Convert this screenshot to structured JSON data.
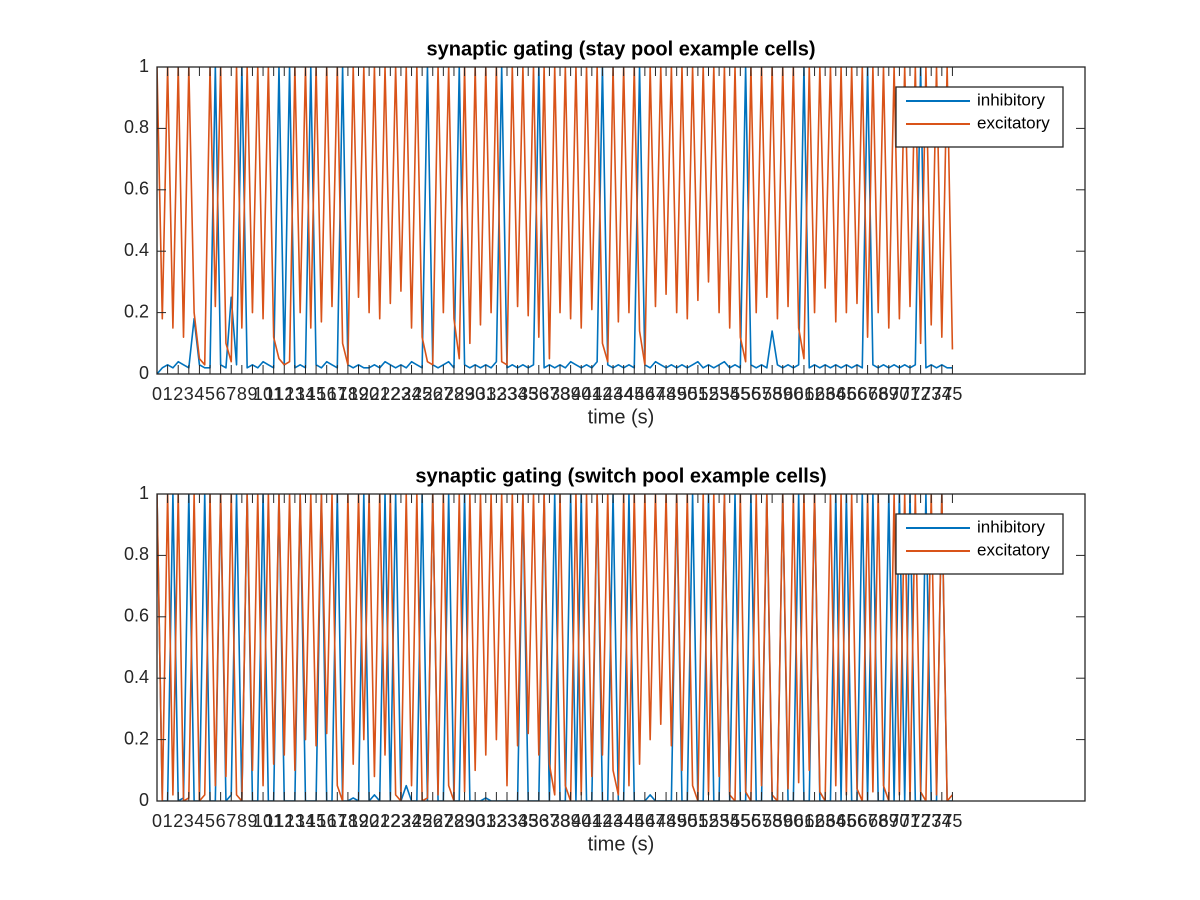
{
  "chart_data": [
    {
      "type": "line",
      "title": "synaptic gating (stay pool example cells)",
      "xlabel": "time (s)",
      "legend": "upper right",
      "grid": false,
      "xlim": [
        0,
        87.5
      ],
      "ylim": [
        0,
        1
      ],
      "xticks": [
        0,
        1,
        2,
        3,
        4,
        5,
        6,
        7,
        8,
        9,
        10,
        11,
        12,
        13,
        14,
        15,
        16,
        17,
        18,
        19,
        20,
        21,
        22,
        23,
        24,
        25,
        26,
        27,
        28,
        29,
        30,
        31,
        32,
        33,
        34,
        35,
        36,
        37,
        38,
        39,
        40,
        41,
        42,
        43,
        44,
        45,
        46,
        47,
        48,
        49,
        50,
        51,
        52,
        53,
        54,
        55,
        56,
        57,
        58,
        59,
        60,
        61,
        62,
        63,
        64,
        65,
        66,
        67,
        68,
        69,
        70,
        71,
        72,
        73,
        74,
        75
      ],
      "yticks": [
        0,
        0.2,
        0.4,
        0.6,
        0.8,
        1
      ],
      "x": [
        0,
        0.5,
        1,
        1.5,
        2,
        2.5,
        3,
        3.5,
        4,
        4.5,
        5,
        5.5,
        6,
        6.5,
        7,
        7.5,
        8,
        8.5,
        9,
        9.5,
        10,
        10.5,
        11,
        11.5,
        12,
        12.5,
        13,
        13.5,
        14,
        14.5,
        15,
        15.5,
        16,
        16.5,
        17,
        17.5,
        18,
        18.5,
        19,
        19.5,
        20,
        20.5,
        21,
        21.5,
        22,
        22.5,
        23,
        23.5,
        24,
        24.5,
        25,
        25.5,
        26,
        26.5,
        27,
        27.5,
        28,
        28.5,
        29,
        29.5,
        30,
        30.5,
        31,
        31.5,
        32,
        32.5,
        33,
        33.5,
        34,
        34.5,
        35,
        35.5,
        36,
        36.5,
        37,
        37.5,
        38,
        38.5,
        39,
        39.5,
        40,
        40.5,
        41,
        41.5,
        42,
        42.5,
        43,
        43.5,
        44,
        44.5,
        45,
        45.5,
        46,
        46.5,
        47,
        47.5,
        48,
        48.5,
        49,
        49.5,
        50,
        50.5,
        51,
        51.5,
        52,
        52.5,
        53,
        53.5,
        54,
        54.5,
        55,
        55.5,
        56,
        56.5,
        57,
        57.5,
        58,
        58.5,
        59,
        59.5,
        60,
        60.5,
        61,
        61.5,
        62,
        62.5,
        63,
        63.5,
        64,
        64.5,
        65,
        65.5,
        66,
        66.5,
        67,
        67.5,
        68,
        68.5,
        69,
        69.5,
        70,
        70.5,
        71,
        71.5,
        72,
        72.5,
        73,
        73.5,
        74,
        74.5,
        75
      ],
      "series": [
        {
          "name": "inhibitory",
          "color": "#0072BD",
          "values": [
            0,
            0.02,
            0.03,
            0.02,
            0.04,
            0.03,
            0.02,
            0.18,
            0.03,
            0.02,
            0.02,
            1,
            0.03,
            0.02,
            0.25,
            0.03,
            1,
            0.02,
            0.03,
            0.02,
            0.04,
            0.03,
            0.02,
            1,
            0.03,
            1,
            0.02,
            0.03,
            0.02,
            1,
            0.03,
            0.02,
            0.04,
            0.03,
            0.02,
            1,
            0.03,
            0.02,
            0.03,
            0.02,
            0.02,
            0.03,
            0.02,
            0.04,
            0.03,
            0.02,
            0.03,
            0.02,
            0.04,
            0.03,
            0.02,
            1,
            0.03,
            0.02,
            0.03,
            0.04,
            0.02,
            1,
            0.03,
            0.02,
            0.03,
            0.02,
            0.03,
            0.02,
            0.04,
            1,
            0.02,
            0.03,
            0.02,
            0.03,
            0.02,
            0.03,
            1,
            0.02,
            0.03,
            0.02,
            0.03,
            0.02,
            0.04,
            0.03,
            0.02,
            0.03,
            0.02,
            0.04,
            1,
            0.03,
            0.02,
            0.03,
            0.02,
            0.03,
            0.02,
            1,
            0.03,
            0.02,
            0.04,
            0.03,
            0.02,
            0.03,
            0.02,
            0.03,
            0.02,
            0.03,
            0.04,
            0.02,
            0.03,
            0.02,
            0.03,
            0.04,
            0.02,
            0.03,
            0.02,
            1,
            0.03,
            0.02,
            0.03,
            0.02,
            0.14,
            0.03,
            0.02,
            0.03,
            0.02,
            0.03,
            1,
            0.02,
            0.03,
            0.02,
            0.03,
            0.02,
            0.03,
            0.02,
            0.03,
            0.02,
            0.03,
            0.02,
            1,
            0.03,
            0.02,
            0.03,
            0.02,
            0.03,
            0.02,
            0.03,
            0.02,
            0.03,
            1,
            0.02,
            0.03,
            0.02,
            0.03,
            0.02,
            0.02
          ]
        },
        {
          "name": "excitatory",
          "color": "#D95319",
          "values": [
            1,
            0.18,
            1,
            0.15,
            1,
            0.12,
            1,
            0.2,
            0.05,
            0.03,
            1,
            0.22,
            1,
            0.1,
            0.04,
            1,
            0.15,
            1,
            0.2,
            1,
            0.18,
            1,
            0.12,
            0.05,
            0.03,
            0.04,
            1,
            0.2,
            1,
            0.15,
            1,
            0.17,
            1,
            0.22,
            1,
            0.1,
            0.03,
            1,
            0.25,
            1,
            0.2,
            1,
            0.18,
            1,
            0.23,
            1,
            0.27,
            1,
            0.15,
            1,
            0.12,
            0.04,
            0.03,
            1,
            0.2,
            1,
            0.18,
            0.05,
            1,
            0.1,
            1,
            0.16,
            1,
            0.2,
            1,
            0.04,
            0.03,
            1,
            0.22,
            1,
            0.19,
            1,
            0.12,
            1,
            0.05,
            1,
            0.2,
            1,
            0.18,
            1,
            0.15,
            1,
            0.21,
            1,
            0.1,
            0.04,
            1,
            0.17,
            1,
            0.2,
            1,
            0.14,
            0.03,
            1,
            0.22,
            1,
            0.26,
            1,
            0.2,
            1,
            0.18,
            1,
            0.24,
            1,
            0.3,
            1,
            0.2,
            1,
            0.15,
            1,
            0.12,
            0.04,
            1,
            0.2,
            1,
            0.25,
            1,
            0.18,
            1,
            0.22,
            1,
            0.15,
            0.05,
            1,
            0.2,
            1,
            0.28,
            1,
            0.17,
            1,
            0.2,
            1,
            0.23,
            1,
            0.12,
            1,
            0.2,
            1,
            0.15,
            1,
            0.18,
            1,
            0.22,
            1,
            0.1,
            1,
            0.16,
            1,
            0.12,
            1,
            0.08
          ]
        }
      ]
    },
    {
      "type": "line",
      "title": "synaptic gating (switch pool example cells)",
      "xlabel": "time (s)",
      "legend": "upper right",
      "grid": false,
      "xlim": [
        0,
        87.5
      ],
      "ylim": [
        0,
        1
      ],
      "xticks": [
        0,
        1,
        2,
        3,
        4,
        5,
        6,
        7,
        8,
        9,
        10,
        11,
        12,
        13,
        14,
        15,
        16,
        17,
        18,
        19,
        20,
        21,
        22,
        23,
        24,
        25,
        26,
        27,
        28,
        29,
        30,
        31,
        32,
        33,
        34,
        35,
        36,
        37,
        38,
        39,
        40,
        41,
        42,
        43,
        44,
        45,
        46,
        47,
        48,
        49,
        50,
        51,
        52,
        53,
        54,
        55,
        56,
        57,
        58,
        59,
        60,
        61,
        62,
        63,
        64,
        65,
        66,
        67,
        68,
        69,
        70,
        71,
        72,
        73,
        74,
        75
      ],
      "yticks": [
        0,
        0.2,
        0.4,
        0.6,
        0.8,
        1
      ],
      "x": [
        0,
        0.5,
        1,
        1.5,
        2,
        2.5,
        3,
        3.5,
        4,
        4.5,
        5,
        5.5,
        6,
        6.5,
        7,
        7.5,
        8,
        8.5,
        9,
        9.5,
        10,
        10.5,
        11,
        11.5,
        12,
        12.5,
        13,
        13.5,
        14,
        14.5,
        15,
        15.5,
        16,
        16.5,
        17,
        17.5,
        18,
        18.5,
        19,
        19.5,
        20,
        20.5,
        21,
        21.5,
        22,
        22.5,
        23,
        23.5,
        24,
        24.5,
        25,
        25.5,
        26,
        26.5,
        27,
        27.5,
        28,
        28.5,
        29,
        29.5,
        30,
        30.5,
        31,
        31.5,
        32,
        32.5,
        33,
        33.5,
        34,
        34.5,
        35,
        35.5,
        36,
        36.5,
        37,
        37.5,
        38,
        38.5,
        39,
        39.5,
        40,
        40.5,
        41,
        41.5,
        42,
        42.5,
        43,
        43.5,
        44,
        44.5,
        45,
        45.5,
        46,
        46.5,
        47,
        47.5,
        48,
        48.5,
        49,
        49.5,
        50,
        50.5,
        51,
        51.5,
        52,
        52.5,
        53,
        53.5,
        54,
        54.5,
        55,
        55.5,
        56,
        56.5,
        57,
        57.5,
        58,
        58.5,
        59,
        59.5,
        60,
        60.5,
        61,
        61.5,
        62,
        62.5,
        63,
        63.5,
        64,
        64.5,
        65,
        65.5,
        66,
        66.5,
        67,
        67.5,
        68,
        68.5,
        69,
        69.5,
        70,
        70.5,
        71,
        71.5,
        72,
        72.5,
        73,
        73.5,
        74,
        74.5,
        75
      ],
      "series": [
        {
          "name": "inhibitory",
          "color": "#0072BD",
          "values": [
            1,
            0,
            0,
            1,
            0,
            0.01,
            1,
            0,
            0,
            1,
            0,
            0,
            1,
            0,
            0.02,
            1,
            0,
            1,
            0,
            0,
            1,
            0,
            0,
            1,
            0,
            0,
            0,
            1,
            0,
            0,
            0,
            1,
            0,
            0,
            1,
            0,
            0,
            0.01,
            0,
            1,
            0,
            0.02,
            0,
            1,
            0,
            1,
            0,
            0.05,
            0,
            0,
            1,
            0,
            1,
            0,
            0,
            1,
            0,
            0,
            1,
            0,
            0,
            0,
            0.01,
            0,
            0,
            0,
            0,
            0,
            0,
            1,
            0,
            0,
            0,
            1,
            0,
            1,
            0,
            0,
            1,
            0,
            1,
            0,
            0,
            1,
            0,
            0,
            1,
            0,
            0,
            1,
            0,
            0,
            0,
            0.02,
            0,
            0,
            0,
            0,
            1,
            0,
            0,
            1,
            0,
            0,
            1,
            0,
            0,
            1,
            0,
            1,
            0,
            0,
            1,
            0,
            0,
            1,
            0,
            0,
            1,
            0,
            0,
            1,
            0,
            0,
            1,
            0,
            0,
            0,
            1,
            0,
            1,
            0,
            0,
            1,
            0,
            1,
            0,
            0,
            1,
            0,
            1,
            0,
            1,
            0,
            0,
            1,
            0,
            0,
            1,
            0,
            0
          ]
        },
        {
          "name": "excitatory",
          "color": "#D95319",
          "values": [
            1,
            0,
            1,
            0.02,
            1,
            0,
            0.01,
            1,
            0,
            0.02,
            1,
            0.05,
            1,
            0.08,
            1,
            0.02,
            0,
            1,
            0.1,
            1,
            0.05,
            1,
            0.12,
            1,
            0.15,
            1,
            0.1,
            1,
            0.2,
            1,
            0.18,
            1,
            0.22,
            1,
            0.05,
            0,
            1,
            0.12,
            1,
            0.2,
            1,
            0.08,
            1,
            0.15,
            1,
            0.02,
            0,
            1,
            0.05,
            1,
            0,
            0.01,
            1,
            0.02,
            1,
            0.05,
            0,
            1,
            0.03,
            1,
            0.1,
            1,
            0.15,
            1,
            0.2,
            1,
            0.05,
            1,
            0.18,
            1,
            0.22,
            1,
            0.15,
            1,
            0.12,
            0.02,
            1,
            0.05,
            0,
            1,
            0.02,
            1,
            0.08,
            1,
            0.15,
            1,
            0.1,
            0.02,
            1,
            0.05,
            1,
            0.12,
            1,
            0.2,
            1,
            0.25,
            1,
            0.18,
            1,
            0.1,
            1,
            0.05,
            0,
            1,
            0.02,
            1,
            0.08,
            1,
            0.02,
            0,
            1,
            0.03,
            0,
            1,
            0.05,
            1,
            0.02,
            0,
            1,
            0.04,
            1,
            0.06,
            1,
            0.1,
            1,
            0.03,
            0,
            1,
            0.05,
            1,
            0.02,
            1,
            0.04,
            0,
            1,
            0.03,
            1,
            0.05,
            0,
            1,
            0.02,
            1,
            0,
            1,
            0.03,
            0,
            1,
            0.02,
            1,
            0,
            0.02
          ]
        }
      ]
    }
  ]
}
